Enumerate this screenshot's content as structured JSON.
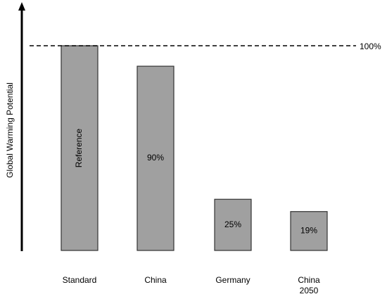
{
  "chart_data": {
    "type": "bar",
    "y_label": "Global Warming Potential",
    "categories": [
      "Standard",
      "China",
      "Germany",
      "China 2050"
    ],
    "values": [
      100,
      90,
      25,
      19
    ],
    "value_labels": [
      "Reference",
      "90%",
      "25%",
      "19%"
    ],
    "color": "#a0a0a0",
    "ylim": [
      0,
      100
    ],
    "reference_line": {
      "value": 100,
      "label": "100%"
    }
  }
}
